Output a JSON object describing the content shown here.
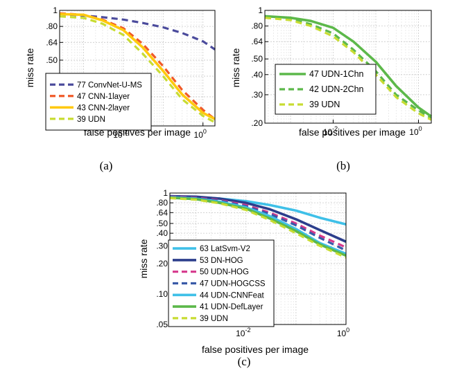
{
  "chart_data": [
    {
      "type": "line",
      "caption": "(a)",
      "xlabel": "false positives per image",
      "ylabel": "miss rate",
      "xscale": "log",
      "yscale": "log",
      "xlim": [
        0.00025,
        2
      ],
      "ylim": [
        0.2,
        1
      ],
      "grid": true,
      "legend_position": "bottom-left",
      "x_ticks": [
        {
          "value": 0.01,
          "base": "10",
          "exp": "-2"
        },
        {
          "value": 1,
          "base": "10",
          "exp": "0"
        }
      ],
      "y_ticks": [
        {
          "value": 0.2,
          "label": ".20"
        },
        {
          "value": 0.3,
          "label": ".30"
        },
        {
          "value": 0.4,
          "label": ".40"
        },
        {
          "value": 0.5,
          "label": ".50"
        },
        {
          "value": 0.64,
          "label": ".64"
        },
        {
          "value": 0.8,
          "label": ".80"
        },
        {
          "value": 1,
          "label": "1"
        }
      ],
      "series": [
        {
          "name": "77 ConvNet-U-MS",
          "color": "#4b4b9c",
          "dash": true,
          "points": [
            [
              0.00025,
              0.95
            ],
            [
              0.001,
              0.93
            ],
            [
              0.003,
              0.91
            ],
            [
              0.01,
              0.88
            ],
            [
              0.03,
              0.84
            ],
            [
              0.1,
              0.79
            ],
            [
              0.3,
              0.73
            ],
            [
              1,
              0.65
            ],
            [
              2,
              0.58
            ]
          ]
        },
        {
          "name": "47 CNN-1layer",
          "color": "#f05a28",
          "dash": true,
          "points": [
            [
              0.00025,
              0.96
            ],
            [
              0.001,
              0.94
            ],
            [
              0.003,
              0.88
            ],
            [
              0.01,
              0.78
            ],
            [
              0.03,
              0.63
            ],
            [
              0.1,
              0.46
            ],
            [
              0.3,
              0.33
            ],
            [
              1,
              0.25
            ],
            [
              2,
              0.22
            ]
          ]
        },
        {
          "name": "43 CNN-2layer",
          "color": "#ffc90e",
          "dash": false,
          "points": [
            [
              0.00025,
              0.95
            ],
            [
              0.001,
              0.94
            ],
            [
              0.003,
              0.87
            ],
            [
              0.01,
              0.76
            ],
            [
              0.03,
              0.6
            ],
            [
              0.1,
              0.43
            ],
            [
              0.3,
              0.31
            ],
            [
              1,
              0.24
            ],
            [
              2,
              0.22
            ]
          ]
        },
        {
          "name": "39 UDN",
          "color": "#c8dc32",
          "dash": true,
          "points": [
            [
              0.00025,
              0.92
            ],
            [
              0.001,
              0.9
            ],
            [
              0.003,
              0.83
            ],
            [
              0.01,
              0.71
            ],
            [
              0.03,
              0.55
            ],
            [
              0.1,
              0.4
            ],
            [
              0.3,
              0.29
            ],
            [
              1,
              0.23
            ],
            [
              2,
              0.21
            ]
          ]
        }
      ]
    },
    {
      "type": "line",
      "caption": "(b)",
      "xlabel": "false positives per image",
      "ylabel": "miss rate",
      "xscale": "log",
      "yscale": "log",
      "xlim": [
        0.00025,
        2
      ],
      "ylim": [
        0.2,
        1
      ],
      "grid": true,
      "legend_position": "bottom-left",
      "x_ticks": [
        {
          "value": 0.01,
          "base": "10",
          "exp": "-2"
        },
        {
          "value": 1,
          "base": "10",
          "exp": "0"
        }
      ],
      "y_ticks": [
        {
          "value": 0.2,
          "label": ".20"
        },
        {
          "value": 0.3,
          "label": ".30"
        },
        {
          "value": 0.4,
          "label": ".40"
        },
        {
          "value": 0.5,
          "label": ".50"
        },
        {
          "value": 0.64,
          "label": ".64"
        },
        {
          "value": 0.8,
          "label": ".80"
        },
        {
          "value": 1,
          "label": "1"
        }
      ],
      "series": [
        {
          "name": "47 UDN-1Chn",
          "color": "#5cb84a",
          "dash": false,
          "points": [
            [
              0.00025,
              0.92
            ],
            [
              0.001,
              0.9
            ],
            [
              0.003,
              0.86
            ],
            [
              0.01,
              0.78
            ],
            [
              0.03,
              0.64
            ],
            [
              0.1,
              0.48
            ],
            [
              0.3,
              0.34
            ],
            [
              1,
              0.25
            ],
            [
              2,
              0.22
            ]
          ]
        },
        {
          "name": "42 UDN-2Chn",
          "color": "#5cb84a",
          "dash": true,
          "points": [
            [
              0.00025,
              0.91
            ],
            [
              0.001,
              0.88
            ],
            [
              0.003,
              0.82
            ],
            [
              0.01,
              0.72
            ],
            [
              0.03,
              0.57
            ],
            [
              0.1,
              0.42
            ],
            [
              0.3,
              0.3
            ],
            [
              1,
              0.24
            ],
            [
              2,
              0.215
            ]
          ]
        },
        {
          "name": "39 UDN",
          "color": "#c8dc32",
          "dash": true,
          "points": [
            [
              0.00025,
              0.9
            ],
            [
              0.001,
              0.87
            ],
            [
              0.003,
              0.8
            ],
            [
              0.01,
              0.69
            ],
            [
              0.03,
              0.55
            ],
            [
              0.1,
              0.4
            ],
            [
              0.3,
              0.29
            ],
            [
              1,
              0.23
            ],
            [
              2,
              0.21
            ]
          ]
        }
      ]
    },
    {
      "type": "line",
      "caption": "(c)",
      "xlabel": "false positives per image",
      "ylabel": "miss rate",
      "xscale": "log",
      "yscale": "log",
      "xlim": [
        0.0003,
        1
      ],
      "ylim": [
        0.05,
        1
      ],
      "grid": true,
      "legend_position": "bottom-left",
      "x_ticks": [
        {
          "value": 0.01,
          "base": "10",
          "exp": "-2"
        },
        {
          "value": 1,
          "base": "10",
          "exp": "0"
        }
      ],
      "y_ticks": [
        {
          "value": 0.05,
          "label": ".05"
        },
        {
          "value": 0.1,
          "label": ".10"
        },
        {
          "value": 0.2,
          "label": ".20"
        },
        {
          "value": 0.3,
          "label": ".30"
        },
        {
          "value": 0.4,
          "label": ".40"
        },
        {
          "value": 0.5,
          "label": ".50"
        },
        {
          "value": 0.64,
          "label": ".64"
        },
        {
          "value": 0.8,
          "label": ".80"
        },
        {
          "value": 1,
          "label": "1"
        }
      ],
      "series": [
        {
          "name": "63 LatSvm-V2",
          "color": "#3fc0e8",
          "dash": false,
          "points": [
            [
              0.0003,
              0.93
            ],
            [
              0.001,
              0.91
            ],
            [
              0.003,
              0.88
            ],
            [
              0.01,
              0.83
            ],
            [
              0.03,
              0.76
            ],
            [
              0.1,
              0.67
            ],
            [
              0.3,
              0.57
            ],
            [
              1,
              0.49
            ]
          ]
        },
        {
          "name": "53 DN-HOG",
          "color": "#2c3e8c",
          "dash": false,
          "points": [
            [
              0.0003,
              0.93
            ],
            [
              0.001,
              0.92
            ],
            [
              0.003,
              0.88
            ],
            [
              0.01,
              0.8
            ],
            [
              0.03,
              0.69
            ],
            [
              0.1,
              0.55
            ],
            [
              0.3,
              0.43
            ],
            [
              1,
              0.33
            ]
          ]
        },
        {
          "name": "50 UDN-HOG",
          "color": "#d6388c",
          "dash": true,
          "points": [
            [
              0.0003,
              0.92
            ],
            [
              0.001,
              0.9
            ],
            [
              0.003,
              0.85
            ],
            [
              0.01,
              0.76
            ],
            [
              0.03,
              0.64
            ],
            [
              0.1,
              0.5
            ],
            [
              0.3,
              0.38
            ],
            [
              1,
              0.29
            ]
          ]
        },
        {
          "name": "47 UDN-HOGCSS",
          "color": "#3a5aa8",
          "dash": true,
          "points": [
            [
              0.0003,
              0.91
            ],
            [
              0.001,
              0.89
            ],
            [
              0.003,
              0.84
            ],
            [
              0.01,
              0.74
            ],
            [
              0.03,
              0.62
            ],
            [
              0.1,
              0.48
            ],
            [
              0.3,
              0.36
            ],
            [
              1,
              0.27
            ]
          ]
        },
        {
          "name": "44 UDN-CNNFeat",
          "color": "#3fc0e8",
          "dash": false,
          "points": [
            [
              0.0003,
              0.91
            ],
            [
              0.001,
              0.88
            ],
            [
              0.003,
              0.82
            ],
            [
              0.01,
              0.72
            ],
            [
              0.03,
              0.59
            ],
            [
              0.1,
              0.44
            ],
            [
              0.3,
              0.32
            ],
            [
              1,
              0.25
            ]
          ]
        },
        {
          "name": "41 UDN-DefLayer",
          "color": "#5cb84a",
          "dash": false,
          "points": [
            [
              0.0003,
              0.9
            ],
            [
              0.001,
              0.87
            ],
            [
              0.003,
              0.8
            ],
            [
              0.01,
              0.7
            ],
            [
              0.03,
              0.56
            ],
            [
              0.1,
              0.42
            ],
            [
              0.3,
              0.31
            ],
            [
              1,
              0.24
            ]
          ]
        },
        {
          "name": "39 UDN",
          "color": "#c8dc32",
          "dash": true,
          "points": [
            [
              0.0003,
              0.89
            ],
            [
              0.001,
              0.86
            ],
            [
              0.003,
              0.79
            ],
            [
              0.01,
              0.68
            ],
            [
              0.03,
              0.54
            ],
            [
              0.1,
              0.4
            ],
            [
              0.3,
              0.3
            ],
            [
              1,
              0.23
            ]
          ]
        }
      ]
    }
  ]
}
